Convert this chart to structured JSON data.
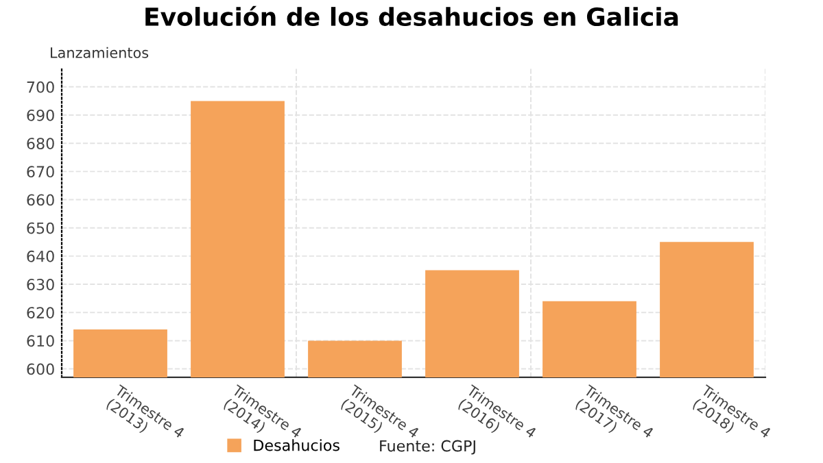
{
  "chart_data": {
    "type": "bar",
    "title": "Evolución de los desahucios en Galicia",
    "ylabel": "Lanzamientos",
    "categories": [
      "Trimestre 4\n(2013)",
      "Trimestre 4\n(2014)",
      "Trimestre 4\n(2015)",
      "Trimestre 4\n(2016)",
      "Trimestre 4\n(2017)",
      "Trimestre 4\n(2018)"
    ],
    "series": [
      {
        "name": "Desahucios",
        "color": "#f5a35a",
        "values": [
          614,
          695,
          610,
          635,
          624,
          645
        ]
      }
    ],
    "ylim": [
      597,
      707
    ],
    "yticks": [
      600,
      610,
      620,
      630,
      640,
      650,
      660,
      670,
      680,
      690,
      700
    ],
    "grid": true,
    "legend": "bottom",
    "annotations": [
      "Fuente: CGPJ"
    ]
  }
}
